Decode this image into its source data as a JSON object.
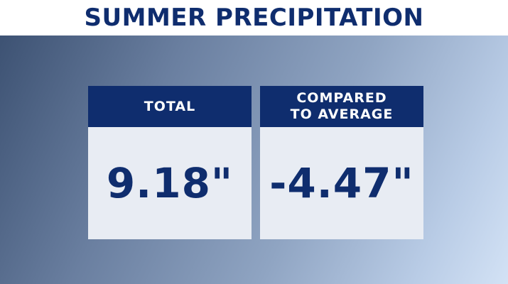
{
  "title": "SUMMER PRECIPITATION",
  "cards": [
    {
      "header": "TOTAL",
      "value": "9.18\""
    },
    {
      "header": "COMPARED\nTO AVERAGE",
      "value": "-4.47\""
    }
  ],
  "colors": {
    "navy": "#0f2d6e",
    "card_body": "#e8ecf3",
    "title_bg": "#ffffff"
  }
}
